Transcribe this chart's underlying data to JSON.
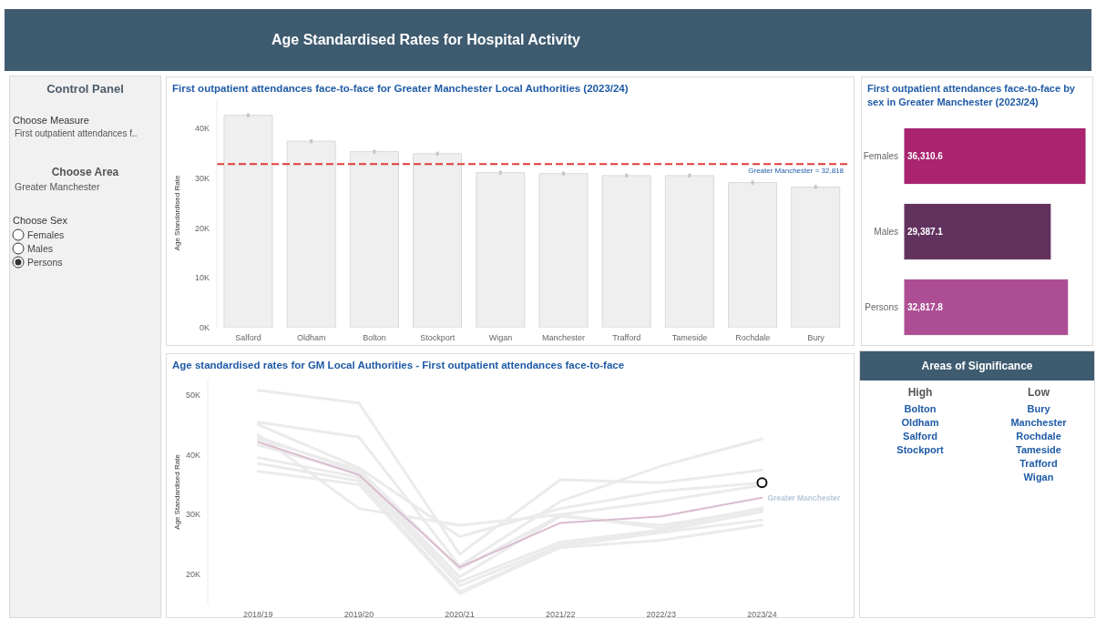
{
  "chart_data": [
    {
      "type": "other",
      "title": "Age Standardised Rates for Hospital Activity"
    },
    {
      "type": "other",
      "title": "Control Panel",
      "annotations": [
        "Choose Measure",
        "First outpatient attendances f..",
        "Choose Area",
        "Greater Manchester",
        "Choose Sex",
        "Females",
        "Males",
        "Persons"
      ]
    },
    {
      "type": "bar",
      "title": "First outpatient attendances face-to-face for Greater Manchester Local Authorities (2023/24)",
      "ylabel": "Age Standardised Rate",
      "categories": [
        "Salford",
        "Oldham",
        "Bolton",
        "Stockport",
        "Wigan",
        "Manchester",
        "Trafford",
        "Tameside",
        "Rochdale",
        "Bury"
      ],
      "values": [
        42600,
        37400,
        35300,
        34900,
        31100,
        30900,
        30500,
        30500,
        29100,
        28200
      ],
      "errors": [
        400,
        400,
        400,
        400,
        400,
        400,
        400,
        400,
        400,
        400
      ],
      "color": "#efefef",
      "ylim": [
        0,
        46000
      ],
      "yticks": [
        {
          "value": 0,
          "label": "0K"
        },
        {
          "value": 10000,
          "label": "10K"
        },
        {
          "value": 20000,
          "label": "20K"
        },
        {
          "value": 30000,
          "label": "30K"
        },
        {
          "value": 40000,
          "label": "40K"
        }
      ],
      "ref_lines": [
        {
          "axis": "y",
          "value": 32818,
          "label": "Greater Manchester = 32,818",
          "color": "#e03c3c",
          "line_style": "dashed"
        }
      ]
    },
    {
      "type": "bar",
      "orientation": "horizontal",
      "title": "First outpatient attendances face-to-face by sex in Greater Manchester (2023/24)",
      "categories": [
        "Females",
        "Males",
        "Persons"
      ],
      "values": [
        36310.6,
        29387.1,
        32817.8
      ],
      "colors": [
        "#a9236f",
        "#62325f",
        "#ad4e94"
      ],
      "value_labels": [
        "36,310.6",
        "29,387.1",
        "32,817.8"
      ],
      "tick_labels": "y"
    },
    {
      "type": "line",
      "title": "Age standardised rates for GM Local Authorities - First outpatient attendances face-to-face",
      "ylabel": "Age Standardised Rate",
      "categories": [
        "2018/19",
        "2019/20",
        "2020/21",
        "2021/22",
        "2022/23",
        "2023/24"
      ],
      "ylim": [
        15000,
        52500
      ],
      "yticks": [
        {
          "value": 20000,
          "label": "20K"
        },
        {
          "value": 30000,
          "label": "30K"
        },
        {
          "value": 40000,
          "label": "40K"
        },
        {
          "value": 50000,
          "label": "50K"
        }
      ],
      "series": [
        {
          "color": "#ebebeb",
          "values": [
            45400,
            42900,
            21400,
            32200,
            38100,
            42600
          ]
        },
        {
          "color": "#ebebeb",
          "values": [
            50700,
            48600,
            23400,
            35800,
            35300,
            37400
          ]
        },
        {
          "color": "#ebebeb",
          "values": [
            45000,
            37800,
            26300,
            31000,
            33900,
            35300
          ]
        },
        {
          "color": "#ebebeb",
          "values": [
            43300,
            31000,
            28200,
            30000,
            32200,
            34900
          ]
        },
        {
          "color": "#ebebeb",
          "values": [
            42600,
            37500,
            20900,
            29900,
            27700,
            31100
          ]
        },
        {
          "color": "#ebebeb",
          "values": [
            43000,
            37000,
            19600,
            29700,
            28200,
            30900
          ]
        },
        {
          "color": "#ebebeb",
          "values": [
            41600,
            36800,
            18800,
            25400,
            27400,
            30500
          ]
        },
        {
          "color": "#ebebeb",
          "values": [
            39500,
            36200,
            18100,
            24900,
            27200,
            30500
          ]
        },
        {
          "color": "#ebebeb",
          "values": [
            38500,
            35600,
            17100,
            24700,
            27000,
            29100
          ]
        },
        {
          "color": "#ebebeb",
          "values": [
            37200,
            35000,
            16800,
            24500,
            25700,
            28200
          ]
        },
        {
          "name": "Greater Manchester",
          "color": "#d9bdd0",
          "values": [
            42100,
            36600,
            21200,
            28600,
            29700,
            32800
          ]
        },
        {
          "type": "scatter",
          "color": "#111111",
          "marker": "circle",
          "x": [
            "2023/24"
          ],
          "values": [
            35300
          ]
        }
      ]
    },
    {
      "type": "other",
      "title": "Areas of Significance"
    },
    {
      "type": "other",
      "title": "High",
      "annotations": [
        "Bolton",
        "Oldham",
        "Salford",
        "Stockport"
      ]
    },
    {
      "type": "other",
      "title": "Low",
      "annotations": [
        "Bury",
        "Manchester",
        "Rochdale",
        "Tameside",
        "Trafford",
        "Wigan"
      ]
    }
  ]
}
